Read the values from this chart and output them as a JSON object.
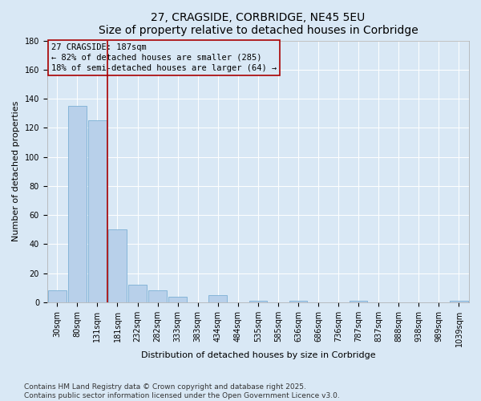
{
  "title": "27, CRAGSIDE, CORBRIDGE, NE45 5EU",
  "subtitle": "Size of property relative to detached houses in Corbridge",
  "xlabel": "Distribution of detached houses by size in Corbridge",
  "ylabel": "Number of detached properties",
  "categories": [
    "30sqm",
    "80sqm",
    "131sqm",
    "181sqm",
    "232sqm",
    "282sqm",
    "333sqm",
    "383sqm",
    "434sqm",
    "484sqm",
    "535sqm",
    "585sqm",
    "636sqm",
    "686sqm",
    "736sqm",
    "787sqm",
    "837sqm",
    "888sqm",
    "938sqm",
    "989sqm",
    "1039sqm"
  ],
  "values": [
    8,
    135,
    125,
    50,
    12,
    8,
    4,
    0,
    5,
    0,
    1,
    0,
    1,
    0,
    0,
    1,
    0,
    0,
    0,
    0,
    1
  ],
  "bar_color": "#b8d0ea",
  "bar_edge_color": "#7bafd4",
  "vline_x_index": 2.5,
  "vline_color": "#aa0000",
  "annotation_line1": "27 CRAGSIDE: 187sqm",
  "annotation_line2": "← 82% of detached houses are smaller (285)",
  "annotation_line3": "18% of semi-detached houses are larger (64) →",
  "box_edge_color": "#aa0000",
  "ylim": [
    0,
    180
  ],
  "yticks": [
    0,
    20,
    40,
    60,
    80,
    100,
    120,
    140,
    160,
    180
  ],
  "background_color": "#d9e8f5",
  "plot_bg_color": "#d9e8f5",
  "grid_color": "#ffffff",
  "footer_line1": "Contains HM Land Registry data © Crown copyright and database right 2025.",
  "footer_line2": "Contains public sector information licensed under the Open Government Licence v3.0.",
  "title_fontsize": 10,
  "subtitle_fontsize": 9,
  "label_fontsize": 8,
  "tick_fontsize": 7,
  "annot_fontsize": 7.5,
  "footer_fontsize": 6.5
}
